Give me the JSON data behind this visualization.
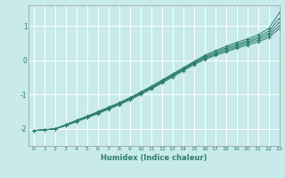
{
  "xlabel": "Humidex (Indice chaleur)",
  "ylabel": "",
  "xlim": [
    -0.5,
    23
  ],
  "ylim": [
    -2.5,
    1.6
  ],
  "yticks": [
    -2,
    -1,
    0,
    1
  ],
  "xticks": [
    0,
    1,
    2,
    3,
    4,
    5,
    6,
    7,
    8,
    9,
    10,
    11,
    12,
    13,
    14,
    15,
    16,
    17,
    18,
    19,
    20,
    21,
    22,
    23
  ],
  "background_color": "#c8eaea",
  "grid_color": "#ffffff",
  "line_color": "#2d7d70",
  "lines": [
    [
      -2.05,
      -2.03,
      -2.0,
      -1.88,
      -1.75,
      -1.63,
      -1.5,
      -1.37,
      -1.24,
      -1.09,
      -0.93,
      -0.76,
      -0.58,
      -0.4,
      -0.22,
      -0.04,
      0.14,
      0.28,
      0.4,
      0.52,
      0.62,
      0.74,
      0.92,
      1.38
    ],
    [
      -2.05,
      -2.03,
      -2.0,
      -1.88,
      -1.76,
      -1.64,
      -1.51,
      -1.38,
      -1.25,
      -1.1,
      -0.94,
      -0.78,
      -0.6,
      -0.42,
      -0.24,
      -0.06,
      0.11,
      0.24,
      0.36,
      0.47,
      0.57,
      0.68,
      0.84,
      1.22
    ],
    [
      -2.05,
      -2.03,
      -2.0,
      -1.89,
      -1.77,
      -1.65,
      -1.53,
      -1.4,
      -1.27,
      -1.12,
      -0.96,
      -0.8,
      -0.62,
      -0.44,
      -0.26,
      -0.08,
      0.08,
      0.2,
      0.32,
      0.43,
      0.53,
      0.63,
      0.78,
      1.1
    ],
    [
      -2.05,
      -2.03,
      -2.0,
      -1.9,
      -1.78,
      -1.66,
      -1.54,
      -1.41,
      -1.28,
      -1.14,
      -0.98,
      -0.82,
      -0.64,
      -0.46,
      -0.28,
      -0.1,
      0.05,
      0.17,
      0.28,
      0.39,
      0.49,
      0.58,
      0.72,
      1.0
    ],
    [
      -2.05,
      -2.03,
      -2.0,
      -1.91,
      -1.79,
      -1.68,
      -1.56,
      -1.43,
      -1.3,
      -1.16,
      -1.0,
      -0.84,
      -0.67,
      -0.49,
      -0.31,
      -0.13,
      0.02,
      0.14,
      0.24,
      0.35,
      0.44,
      0.53,
      0.66,
      0.92
    ]
  ]
}
